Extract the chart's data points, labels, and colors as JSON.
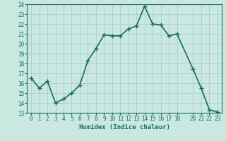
{
  "x": [
    0,
    1,
    2,
    3,
    4,
    5,
    6,
    7,
    8,
    9,
    10,
    11,
    12,
    13,
    14,
    15,
    16,
    17,
    18,
    20,
    21,
    22,
    23
  ],
  "y": [
    16.5,
    15.5,
    16.2,
    14.0,
    14.4,
    15.0,
    15.8,
    18.3,
    19.5,
    20.9,
    20.8,
    20.8,
    21.5,
    21.8,
    23.8,
    22.0,
    21.9,
    20.8,
    21.0,
    17.4,
    15.5,
    13.3,
    13.1
  ],
  "line_color": "#1a6b5a",
  "marker": "+",
  "marker_size": 4,
  "bg_color": "#c8e8e0",
  "grid_color": "#b0cccc",
  "xlabel": "Humidex (Indice chaleur)",
  "ylabel": "",
  "xlim": [
    -0.5,
    23.5
  ],
  "ylim": [
    13,
    24
  ],
  "xticks": [
    0,
    1,
    2,
    3,
    4,
    5,
    6,
    7,
    8,
    9,
    10,
    11,
    12,
    13,
    14,
    15,
    16,
    17,
    18,
    20,
    21,
    22,
    23
  ],
  "yticks": [
    13,
    14,
    15,
    16,
    17,
    18,
    19,
    20,
    21,
    22,
    23,
    24
  ],
  "tick_color": "#1a6b5a",
  "label_color": "#1a6b5a",
  "linewidth": 1.2,
  "xlabel_fontsize": 6.5,
  "tick_fontsize": 5.5
}
